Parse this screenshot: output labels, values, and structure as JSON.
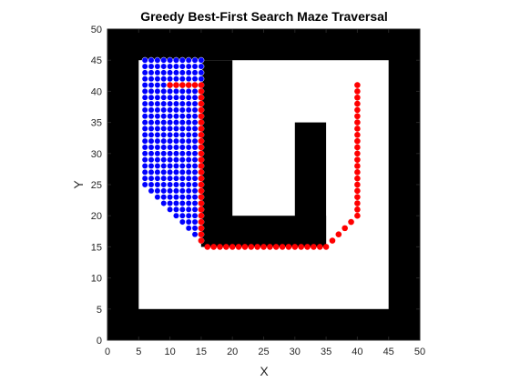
{
  "chart_data": {
    "type": "scatter",
    "title": "Greedy Best-First Search Maze Traversal",
    "xlabel": "X",
    "ylabel": "Y",
    "xlim": [
      0,
      50
    ],
    "ylim": [
      0,
      50
    ],
    "xticks": [
      0,
      5,
      10,
      15,
      20,
      25,
      30,
      35,
      40,
      45,
      50
    ],
    "yticks": [
      0,
      5,
      10,
      15,
      20,
      25,
      30,
      35,
      40,
      45,
      50
    ],
    "grid": false,
    "legend": "none",
    "colors": {
      "wall": "#000000",
      "free": "#ffffff",
      "explored": "#0000ff",
      "path": "#ff0000"
    },
    "walls": [
      {
        "x0": 0,
        "x1": 50,
        "y0": 0,
        "y1": 5
      },
      {
        "x0": 0,
        "x1": 50,
        "y0": 45,
        "y1": 50
      },
      {
        "x0": 0,
        "x1": 5,
        "y0": 0,
        "y1": 50
      },
      {
        "x0": 45,
        "x1": 50,
        "y0": 0,
        "y1": 50
      },
      {
        "x0": 15,
        "x1": 20,
        "y0": 15,
        "y1": 45
      },
      {
        "x0": 15,
        "x1": 35,
        "y0": 15,
        "y1": 20
      },
      {
        "x0": 30,
        "x1": 35,
        "y0": 15,
        "y1": 35
      }
    ],
    "explored_region": {
      "x_range": [
        6,
        15
      ],
      "y_top": 45,
      "column_bottoms": [
        25,
        24,
        23,
        22,
        21,
        20,
        19,
        18,
        17,
        16
      ]
    },
    "path": [
      [
        10,
        41
      ],
      [
        11,
        41
      ],
      [
        12,
        41
      ],
      [
        13,
        41
      ],
      [
        14,
        41
      ],
      [
        15,
        41
      ],
      [
        15,
        40
      ],
      [
        15,
        39
      ],
      [
        15,
        38
      ],
      [
        15,
        37
      ],
      [
        15,
        36
      ],
      [
        15,
        35
      ],
      [
        15,
        34
      ],
      [
        15,
        33
      ],
      [
        15,
        32
      ],
      [
        15,
        31
      ],
      [
        15,
        30
      ],
      [
        15,
        29
      ],
      [
        15,
        28
      ],
      [
        15,
        27
      ],
      [
        15,
        26
      ],
      [
        15,
        25
      ],
      [
        15,
        24
      ],
      [
        15,
        23
      ],
      [
        15,
        22
      ],
      [
        15,
        21
      ],
      [
        15,
        20
      ],
      [
        15,
        19
      ],
      [
        15,
        18
      ],
      [
        15,
        17
      ],
      [
        15,
        16
      ],
      [
        16,
        15
      ],
      [
        17,
        15
      ],
      [
        18,
        15
      ],
      [
        19,
        15
      ],
      [
        20,
        15
      ],
      [
        21,
        15
      ],
      [
        22,
        15
      ],
      [
        23,
        15
      ],
      [
        24,
        15
      ],
      [
        25,
        15
      ],
      [
        26,
        15
      ],
      [
        27,
        15
      ],
      [
        28,
        15
      ],
      [
        29,
        15
      ],
      [
        30,
        15
      ],
      [
        31,
        15
      ],
      [
        32,
        15
      ],
      [
        33,
        15
      ],
      [
        34,
        15
      ],
      [
        35,
        15
      ],
      [
        36,
        16
      ],
      [
        37,
        17
      ],
      [
        38,
        18
      ],
      [
        39,
        19
      ],
      [
        40,
        20
      ],
      [
        40,
        21
      ],
      [
        40,
        22
      ],
      [
        40,
        23
      ],
      [
        40,
        24
      ],
      [
        40,
        25
      ],
      [
        40,
        26
      ],
      [
        40,
        27
      ],
      [
        40,
        28
      ],
      [
        40,
        29
      ],
      [
        40,
        30
      ],
      [
        40,
        31
      ],
      [
        40,
        32
      ],
      [
        40,
        33
      ],
      [
        40,
        34
      ],
      [
        40,
        35
      ],
      [
        40,
        36
      ],
      [
        40,
        37
      ],
      [
        40,
        38
      ],
      [
        40,
        39
      ],
      [
        40,
        40
      ],
      [
        40,
        41
      ]
    ]
  }
}
